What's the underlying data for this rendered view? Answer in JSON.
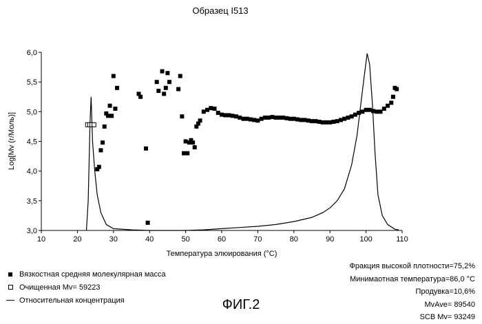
{
  "chart_data": {
    "type": "scatter",
    "title": "Образец I513",
    "xlabel": "Температура элюирования (°C)",
    "ylabel": "Log[Mv (г/Моль)]",
    "xlim": [
      10,
      110
    ],
    "ylim": [
      3.0,
      6.0
    ],
    "xticks": [
      "10",
      "20",
      "30",
      "40",
      "50",
      "60",
      "70",
      "80",
      "90",
      "100",
      "110"
    ],
    "yticks": [
      "3,0",
      "3,5",
      "4,0",
      "4,5",
      "5,0",
      "5,5",
      "6,0"
    ],
    "grid": false,
    "series": [
      {
        "name": "Вязкостная средняя молекулярная масса",
        "marker": "filled-square",
        "points": [
          [
            25.5,
            4.03
          ],
          [
            26,
            4.07
          ],
          [
            26.5,
            4.35
          ],
          [
            27,
            4.48
          ],
          [
            27.5,
            4.75
          ],
          [
            28,
            4.97
          ],
          [
            28.5,
            4.93
          ],
          [
            29,
            5.1
          ],
          [
            29.5,
            4.93
          ],
          [
            30,
            5.6
          ],
          [
            30.5,
            5.05
          ],
          [
            31,
            5.4
          ],
          [
            37,
            5.3
          ],
          [
            37.5,
            5.25
          ],
          [
            39,
            4.38
          ],
          [
            39.5,
            3.13
          ],
          [
            42,
            5.5
          ],
          [
            42.5,
            5.35
          ],
          [
            43.5,
            5.68
          ],
          [
            44,
            5.3
          ],
          [
            44.5,
            5.4
          ],
          [
            45,
            5.65
          ],
          [
            45.5,
            5.5
          ],
          [
            48,
            5.38
          ],
          [
            48.5,
            5.6
          ],
          [
            49,
            4.92
          ],
          [
            49.5,
            4.3
          ],
          [
            50,
            4.5
          ],
          [
            50.5,
            4.3
          ],
          [
            51,
            4.48
          ],
          [
            51.5,
            4.52
          ],
          [
            52,
            4.48
          ],
          [
            52.5,
            4.4
          ],
          [
            53,
            4.75
          ],
          [
            53.5,
            4.8
          ],
          [
            54,
            4.85
          ],
          [
            55,
            5.0
          ],
          [
            56,
            5.03
          ],
          [
            57,
            5.06
          ],
          [
            58,
            5.05
          ],
          [
            59,
            4.98
          ],
          [
            60,
            4.95
          ],
          [
            61,
            4.94
          ],
          [
            62,
            4.94
          ],
          [
            63,
            4.93
          ],
          [
            64,
            4.92
          ],
          [
            65,
            4.9
          ],
          [
            66,
            4.88
          ],
          [
            67,
            4.88
          ],
          [
            68,
            4.87
          ],
          [
            69,
            4.86
          ],
          [
            70,
            4.85
          ],
          [
            71,
            4.88
          ],
          [
            72,
            4.9
          ],
          [
            73,
            4.9
          ],
          [
            74,
            4.91
          ],
          [
            75,
            4.9
          ],
          [
            76,
            4.9
          ],
          [
            77,
            4.9
          ],
          [
            78,
            4.89
          ],
          [
            79,
            4.88
          ],
          [
            80,
            4.88
          ],
          [
            81,
            4.87
          ],
          [
            82,
            4.86
          ],
          [
            83,
            4.86
          ],
          [
            84,
            4.85
          ],
          [
            85,
            4.84
          ],
          [
            86,
            4.84
          ],
          [
            87,
            4.83
          ],
          [
            88,
            4.82
          ],
          [
            89,
            4.82
          ],
          [
            90,
            4.82
          ],
          [
            91,
            4.83
          ],
          [
            92,
            4.84
          ],
          [
            93,
            4.86
          ],
          [
            94,
            4.88
          ],
          [
            95,
            4.9
          ],
          [
            96,
            4.92
          ],
          [
            97,
            4.95
          ],
          [
            98,
            4.98
          ],
          [
            99,
            5.0
          ],
          [
            100,
            5.03
          ],
          [
            101,
            5.03
          ],
          [
            102,
            5.01
          ],
          [
            103,
            5.0
          ],
          [
            104,
            5.0
          ],
          [
            105,
            5.05
          ],
          [
            106,
            5.1
          ],
          [
            107,
            5.15
          ],
          [
            107.5,
            5.25
          ],
          [
            108,
            5.4
          ],
          [
            108.5,
            5.38
          ]
        ]
      },
      {
        "name": "Очищенная Mv= 59223",
        "marker": "open-square",
        "points": [
          [
            22.8,
            4.78
          ],
          [
            23.4,
            4.78
          ],
          [
            24,
            4.78
          ],
          [
            24.6,
            4.78
          ]
        ]
      },
      {
        "name": "Относительная концентрация",
        "marker": "line",
        "points": [
          [
            22.5,
            3.0
          ],
          [
            23,
            3.5
          ],
          [
            23.5,
            4.8
          ],
          [
            23.8,
            5.25
          ],
          [
            24.2,
            4.5
          ],
          [
            24.8,
            4.0
          ],
          [
            25.5,
            3.6
          ],
          [
            26.5,
            3.3
          ],
          [
            28,
            3.1
          ],
          [
            30,
            3.03
          ],
          [
            35,
            3.01
          ],
          [
            40,
            3.0
          ],
          [
            50,
            3.0
          ],
          [
            55,
            3.01
          ],
          [
            60,
            3.03
          ],
          [
            65,
            3.05
          ],
          [
            70,
            3.07
          ],
          [
            75,
            3.1
          ],
          [
            80,
            3.15
          ],
          [
            85,
            3.22
          ],
          [
            88,
            3.3
          ],
          [
            90,
            3.38
          ],
          [
            92,
            3.5
          ],
          [
            94,
            3.7
          ],
          [
            96,
            4.1
          ],
          [
            97.5,
            4.6
          ],
          [
            98.5,
            5.1
          ],
          [
            99.5,
            5.6
          ],
          [
            100.3,
            5.98
          ],
          [
            101,
            5.8
          ],
          [
            101.8,
            5.1
          ],
          [
            102.5,
            4.3
          ],
          [
            103.3,
            3.6
          ],
          [
            104.5,
            3.25
          ],
          [
            106,
            3.1
          ],
          [
            108,
            3.02
          ],
          [
            109,
            3.01
          ]
        ]
      }
    ],
    "legend_position": "bottom-left"
  },
  "stats": [
    "Фракция высокой плотности=75,2%",
    "Минимаотная температура=86,0 °C",
    "Продувка=10,6%",
    "MvAve= 89540",
    "SCB Mv= 93249"
  ],
  "figure_label": "ФИГ.2"
}
